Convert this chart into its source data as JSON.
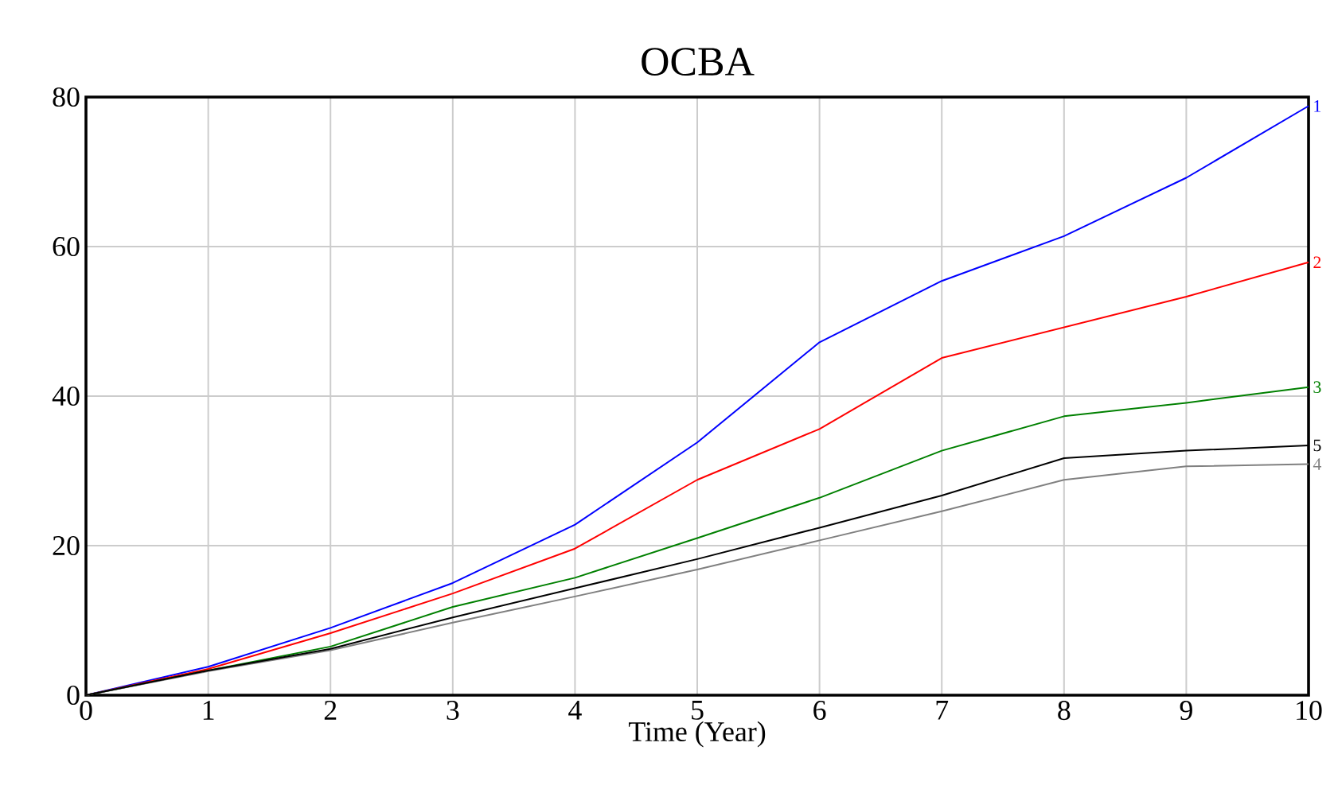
{
  "chart_data": {
    "type": "line",
    "title": "OCBA",
    "xlabel": "Time (Year)",
    "x": [
      0,
      1,
      2,
      3,
      4,
      5,
      6,
      7,
      8,
      9,
      10
    ],
    "xlim": [
      0,
      10
    ],
    "xticks": [
      0,
      1,
      2,
      3,
      4,
      5,
      6,
      7,
      8,
      9,
      10
    ],
    "ylim": [
      0,
      80
    ],
    "yticks": [
      0,
      20,
      40,
      60,
      80
    ],
    "grid": true,
    "line_style": "solid",
    "series": [
      {
        "name": "1",
        "color": "#0000ff",
        "values": [
          0,
          3.8,
          9.0,
          15.0,
          22.8,
          33.8,
          47.2,
          55.4,
          61.4,
          69.2,
          78.8
        ]
      },
      {
        "name": "2",
        "color": "#ff0000",
        "values": [
          0,
          3.5,
          8.3,
          13.6,
          19.6,
          28.8,
          35.6,
          45.1,
          49.2,
          53.3,
          57.9
        ]
      },
      {
        "name": "3",
        "color": "#008000",
        "values": [
          0,
          3.3,
          6.5,
          11.8,
          15.7,
          21,
          26.4,
          32.7,
          37.3,
          39.1,
          41.2
        ]
      },
      {
        "name": "4",
        "color": "#808080",
        "values": [
          0,
          3.2,
          6.0,
          9.7,
          13.2,
          16.8,
          20.7,
          24.6,
          28.8,
          30.6,
          30.9
        ]
      },
      {
        "name": "5",
        "color": "#000000",
        "values": [
          0,
          3.3,
          6.2,
          10.4,
          14.3,
          18.2,
          22.4,
          26.7,
          31.7,
          32.7,
          33.4
        ]
      }
    ]
  }
}
